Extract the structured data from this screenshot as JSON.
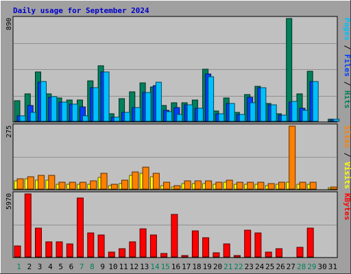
{
  "chart_data": {
    "type": "bar",
    "title": "Daily usage for September 2024",
    "categories": [
      "1",
      "2",
      "3",
      "4",
      "5",
      "6",
      "7",
      "8",
      "9",
      "10",
      "11",
      "12",
      "13",
      "14",
      "15",
      "16",
      "17",
      "18",
      "19",
      "20",
      "21",
      "22",
      "23",
      "24",
      "25",
      "26",
      "27",
      "28",
      "29",
      "30",
      "31"
    ],
    "weekend_days": [
      1,
      7,
      8,
      14,
      15,
      21,
      22,
      28,
      29
    ],
    "colors": {
      "hits": "#00805c",
      "files": "#0040ff",
      "pages": "#00c0ff",
      "visits": "#ffff00",
      "sites": "#ff8000",
      "kbytes": "#ff0000",
      "title": "#0000cc",
      "weekend_day": "#00805c",
      "weekday": "#000000",
      "plot_bg": "#c0c0c0",
      "frame_bg": "#a0a0a0"
    },
    "panels": [
      {
        "id": "hits_files_pages",
        "ymax": 890,
        "ymax_label": "890",
        "side_label": [
          {
            "text": "Pages",
            "color_key": "pages"
          },
          {
            "text": " / ",
            "color_key": "weekday"
          },
          {
            "text": "Files",
            "color_key": "files"
          },
          {
            "text": " / ",
            "color_key": "weekday"
          },
          {
            "text": "Hits",
            "color_key": "hits"
          }
        ],
        "series": [
          {
            "key": "hits",
            "values": [
              180,
              240,
              425,
              240,
              200,
              185,
              185,
              350,
              480,
              65,
              195,
              255,
              330,
              295,
              135,
              160,
              160,
              185,
              450,
              90,
              200,
              75,
              230,
              300,
              155,
              65,
              890,
              240,
              435,
              0,
              20
            ]
          },
          {
            "key": "files",
            "values": [
              50,
              135,
              340,
              210,
              165,
              150,
              125,
              290,
              430,
              35,
              75,
              120,
              250,
              310,
              95,
              120,
              140,
              110,
              410,
              65,
              155,
              60,
              210,
              290,
              140,
              55,
              165,
              115,
              345,
              0,
              15
            ]
          },
          {
            "key": "pages",
            "values": [
              50,
              75,
              345,
              215,
              165,
              150,
              45,
              290,
              430,
              35,
              75,
              120,
              250,
              340,
              85,
              60,
              140,
              110,
              385,
              65,
              155,
              60,
              160,
              290,
              140,
              55,
              175,
              95,
              345,
              0,
              15
            ]
          }
        ]
      },
      {
        "id": "visits_sites",
        "ymax": 275,
        "ymax_label": "275",
        "side_label": [
          {
            "text": "Sites",
            "color_key": "sites"
          },
          {
            "text": " / ",
            "color_key": "weekday"
          },
          {
            "text": "Visits",
            "color_key": "visits"
          }
        ],
        "series": [
          {
            "key": "visits",
            "values": [
              35,
              45,
              40,
              40,
              20,
              20,
              20,
              20,
              50,
              15,
              25,
              60,
              70,
              55,
              15,
              10,
              25,
              25,
              25,
              20,
              30,
              20,
              20,
              20,
              15,
              20,
              30,
              20,
              20,
              0,
              5
            ]
          },
          {
            "key": "sites",
            "values": [
              45,
              55,
              60,
              60,
              30,
              30,
              30,
              35,
              70,
              20,
              40,
              75,
              95,
              70,
              30,
              15,
              35,
              35,
              35,
              30,
              40,
              30,
              30,
              30,
              25,
              30,
              275,
              30,
              30,
              0,
              10
            ]
          }
        ]
      },
      {
        "id": "kbytes",
        "ymax": 5970,
        "ymax_label": "5970",
        "side_label": [
          {
            "text": "KBytes",
            "color_key": "kbytes"
          }
        ],
        "series": [
          {
            "key": "kbytes",
            "values": [
              1050,
              5970,
              2750,
              1450,
              1450,
              1250,
              5600,
              2300,
              2100,
              480,
              800,
              1400,
              2650,
              2050,
              300,
              4050,
              150,
              2450,
              1800,
              400,
              1250,
              150,
              2550,
              2250,
              450,
              750,
              0,
              900,
              2700,
              0,
              0
            ]
          }
        ]
      }
    ]
  }
}
